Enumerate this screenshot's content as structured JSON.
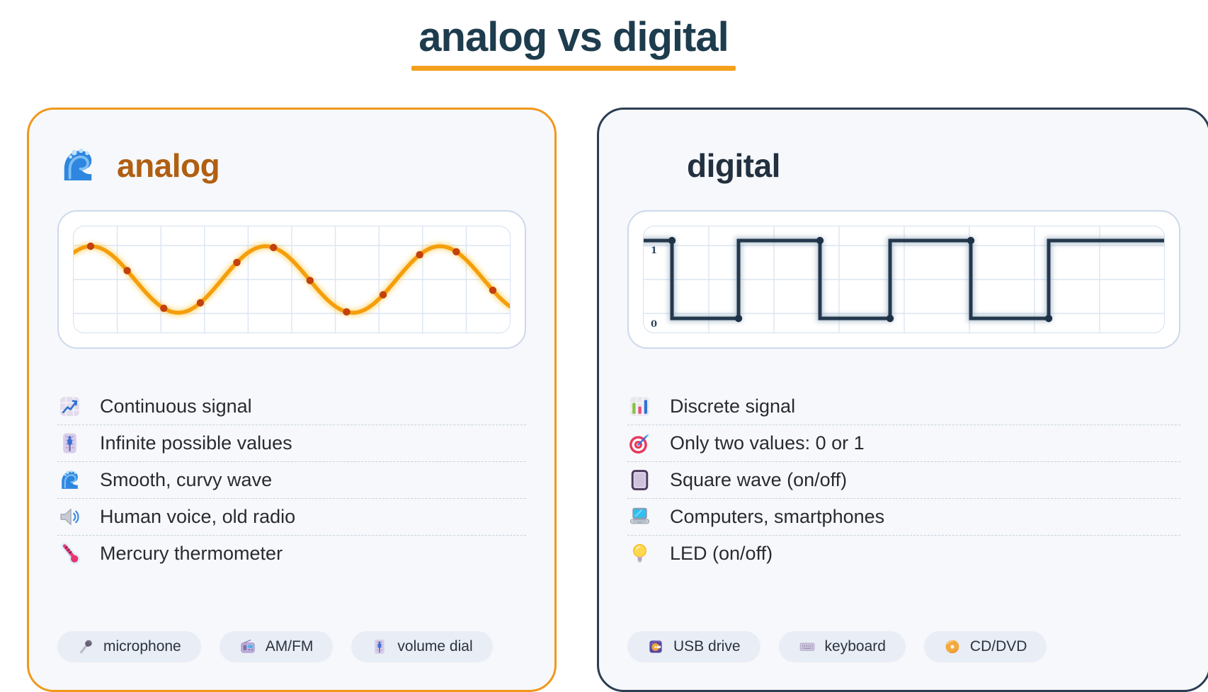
{
  "page": {
    "title": "analog vs digital"
  },
  "theme": {
    "title_color": "#1d3c4e",
    "underline_color": "#f3a11c",
    "card_background": "#f7f8fb",
    "pill_background": "#e8edf6",
    "grid_color": "#dbe5f3",
    "text_color": "#2a2a32"
  },
  "cards": [
    {
      "id": "analog",
      "title": "analog",
      "title_icon": "water-wave-icon",
      "accent_color": "#f0981b",
      "title_color": "#b05f12",
      "features": [
        {
          "icon": "chart-increasing-icon",
          "label": "Continuous signal"
        },
        {
          "icon": "level-slider-icon",
          "label": "Infinite possible values"
        },
        {
          "icon": "water-wave-icon",
          "label": "Smooth, curvy wave"
        },
        {
          "icon": "speaker-icon",
          "label": "Human voice, old radio"
        },
        {
          "icon": "thermometer-icon",
          "label": "Mercury thermometer"
        }
      ],
      "examples": [
        {
          "icon": "microphone-icon",
          "label": "microphone"
        },
        {
          "icon": "radio-icon",
          "label": "AM/FM"
        },
        {
          "icon": "level-slider-icon",
          "label": "volume dial"
        }
      ],
      "chart_data": {
        "type": "line",
        "waveform": "sine",
        "title": "",
        "cycles_shown": 2.5,
        "amplitude": 1,
        "midline": 0,
        "y_range": [
          -1,
          1
        ],
        "grid": true,
        "legend": false,
        "sample_dot_count": 12,
        "line_color": "#f59e0b",
        "glow_color": "#fbbf24",
        "dot_color": "#c2410c",
        "description": "smooth continuous sine wave with evenly spaced sample dots"
      }
    },
    {
      "id": "digital",
      "title": "digital",
      "title_icon": "zap-icon",
      "accent_color": "#2b3e52",
      "title_color": "#22303f",
      "features": [
        {
          "icon": "bar-chart-icon",
          "label": "Discrete signal"
        },
        {
          "icon": "target-icon",
          "label": "Only two values: 0 or 1"
        },
        {
          "icon": "square-icon",
          "label": "Square wave (on/off)"
        },
        {
          "icon": "laptop-icon",
          "label": "Computers, smartphones"
        },
        {
          "icon": "bulb-icon",
          "label": "LED (on/off)"
        }
      ],
      "examples": [
        {
          "icon": "usb-drive-icon",
          "label": "USB drive"
        },
        {
          "icon": "keyboard-icon",
          "label": "keyboard"
        },
        {
          "icon": "cd-icon",
          "label": "CD/DVD"
        }
      ],
      "chart_data": {
        "type": "line",
        "waveform": "square",
        "title": "",
        "levels": [
          1,
          0,
          1,
          0,
          1,
          0,
          1
        ],
        "y_labels": {
          "high": "1",
          "low": "0"
        },
        "y_range": [
          0,
          1
        ],
        "grid": true,
        "legend": false,
        "line_color": "#24384d",
        "glow_color": "#7d99af",
        "dot_color": "#1f3347",
        "description": "square wave alternating between 1 and 0 with dots at each transition"
      }
    }
  ]
}
